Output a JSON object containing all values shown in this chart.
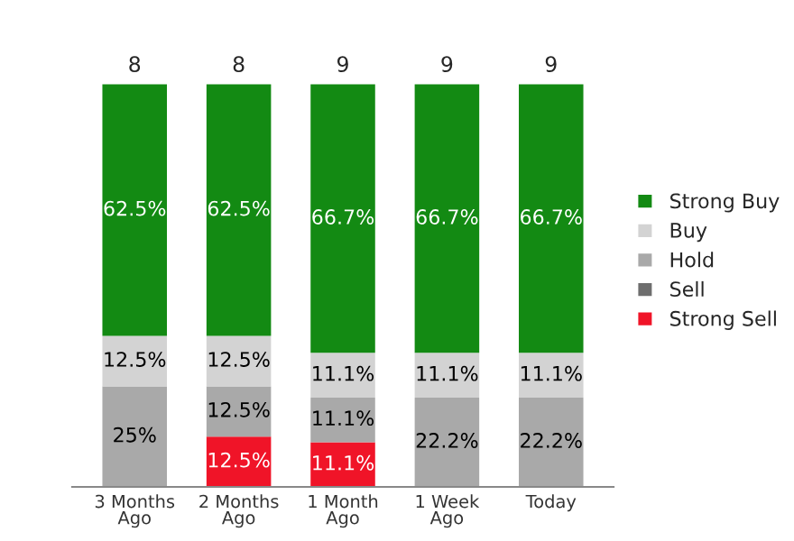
{
  "chart_data": {
    "type": "bar",
    "stacked": true,
    "categories": [
      "3 Months\nAgo",
      "2 Months\nAgo",
      "1 Month\nAgo",
      "1 Week\nAgo",
      "Today"
    ],
    "series": [
      {
        "name": "Strong Sell",
        "color": "#f01428",
        "values": [
          0,
          12.5,
          11.1,
          0,
          0
        ],
        "value_labels": [
          null,
          "12.5%",
          "11.1%",
          null,
          null
        ]
      },
      {
        "name": "Sell",
        "color": "#6e6e6e",
        "values": [
          0,
          0,
          0,
          0,
          0
        ],
        "value_labels": [
          null,
          null,
          null,
          null,
          null
        ]
      },
      {
        "name": "Hold",
        "color": "#a9a9a9",
        "values": [
          25,
          12.5,
          11.1,
          22.2,
          22.2
        ],
        "value_labels": [
          "25%",
          "12.5%",
          "11.1%",
          "22.2%",
          "22.2%"
        ]
      },
      {
        "name": "Buy",
        "color": "#d3d3d3",
        "values": [
          12.5,
          12.5,
          11.1,
          11.1,
          11.1
        ],
        "value_labels": [
          "12.5%",
          "12.5%",
          "11.1%",
          "11.1%",
          "11.1%"
        ]
      },
      {
        "name": "Strong Buy",
        "color": "#138a13",
        "values": [
          62.5,
          62.5,
          66.7,
          66.7,
          66.7
        ],
        "value_labels": [
          "62.5%",
          "62.5%",
          "66.7%",
          "66.7%",
          "66.7%"
        ]
      }
    ],
    "annotations": [
      {
        "text": "8",
        "x": "3 Months\nAgo",
        "y": 100
      },
      {
        "text": "8",
        "x": "2 Months\nAgo",
        "y": 100
      },
      {
        "text": "9",
        "x": "1 Month\nAgo",
        "y": 100
      },
      {
        "text": "9",
        "x": "1 Week\nAgo",
        "y": 100
      },
      {
        "text": "9",
        "x": "Today",
        "y": 100
      }
    ],
    "legend": "right",
    "grid": false
  }
}
